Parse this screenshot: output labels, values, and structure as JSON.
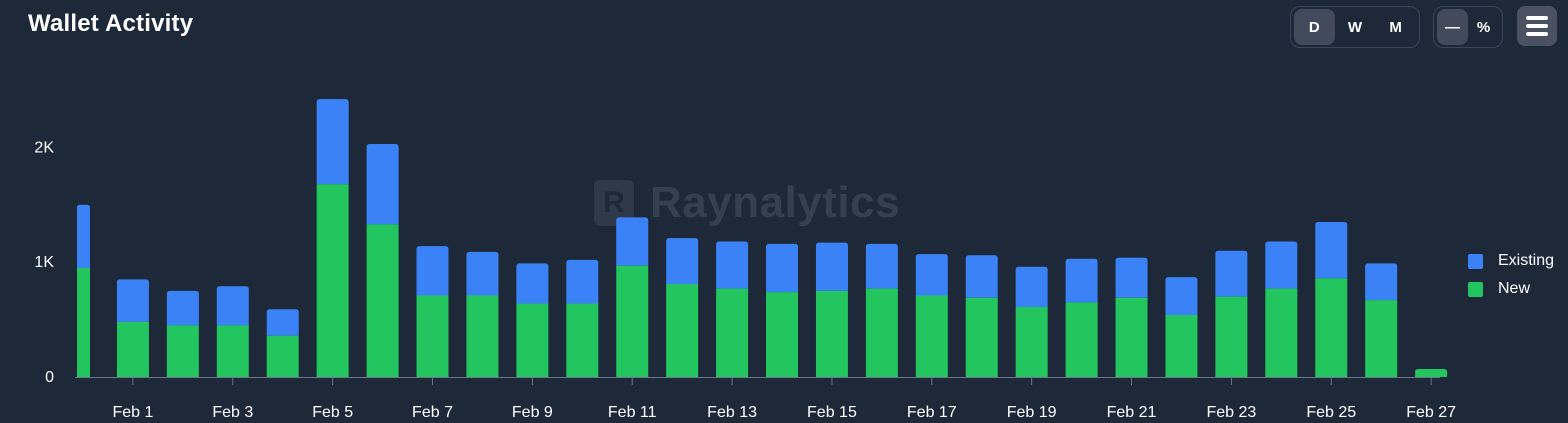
{
  "title": "Wallet Activity",
  "period_buttons": [
    {
      "label": "D",
      "active": true
    },
    {
      "label": "W",
      "active": false
    },
    {
      "label": "M",
      "active": false
    }
  ],
  "mode_buttons": [
    {
      "label": "—",
      "active": true
    },
    {
      "label": "%",
      "active": false
    }
  ],
  "menu_icon": "hamburger-menu-icon",
  "watermark": {
    "logo": "R",
    "text": "Raynalytics"
  },
  "colors": {
    "background": "#1d2838",
    "existing": "#3b82f6",
    "new": "#22c55e"
  },
  "chart_data": {
    "type": "bar",
    "stacked": true,
    "title": "Wallet Activity",
    "xlabel": "",
    "ylabel": "",
    "ylim": [
      0,
      2500
    ],
    "y_ticks": [
      0,
      1000,
      2000
    ],
    "y_tick_labels": [
      "0",
      "1K",
      "2K"
    ],
    "categories": [
      "Jan 31",
      "Feb 1",
      "Feb 2",
      "Feb 3",
      "Feb 4",
      "Feb 5",
      "Feb 6",
      "Feb 7",
      "Feb 8",
      "Feb 9",
      "Feb 10",
      "Feb 11",
      "Feb 12",
      "Feb 13",
      "Feb 14",
      "Feb 15",
      "Feb 16",
      "Feb 17",
      "Feb 18",
      "Feb 19",
      "Feb 20",
      "Feb 21",
      "Feb 22",
      "Feb 23",
      "Feb 24",
      "Feb 25",
      "Feb 26",
      "Feb 27"
    ],
    "x_tick_labels": [
      "Feb 1",
      "Feb 3",
      "Feb 5",
      "Feb 7",
      "Feb 9",
      "Feb 11",
      "Feb 13",
      "Feb 15",
      "Feb 17",
      "Feb 19",
      "Feb 21",
      "Feb 23",
      "Feb 25",
      "Feb 27"
    ],
    "series": [
      {
        "name": "New",
        "color": "#22c55e",
        "values": [
          950,
          480,
          450,
          450,
          360,
          1680,
          1330,
          710,
          710,
          640,
          640,
          970,
          810,
          770,
          740,
          750,
          770,
          710,
          690,
          610,
          650,
          690,
          540,
          700,
          770,
          860,
          670,
          70
        ]
      },
      {
        "name": "Existing",
        "color": "#3b82f6",
        "values": [
          550,
          370,
          300,
          340,
          230,
          740,
          700,
          430,
          380,
          350,
          380,
          420,
          400,
          410,
          420,
          420,
          390,
          360,
          370,
          350,
          380,
          350,
          330,
          400,
          410,
          490,
          320,
          0
        ]
      }
    ],
    "legend": {
      "position": "right",
      "entries": [
        "Existing",
        "New"
      ]
    },
    "grid": false
  }
}
